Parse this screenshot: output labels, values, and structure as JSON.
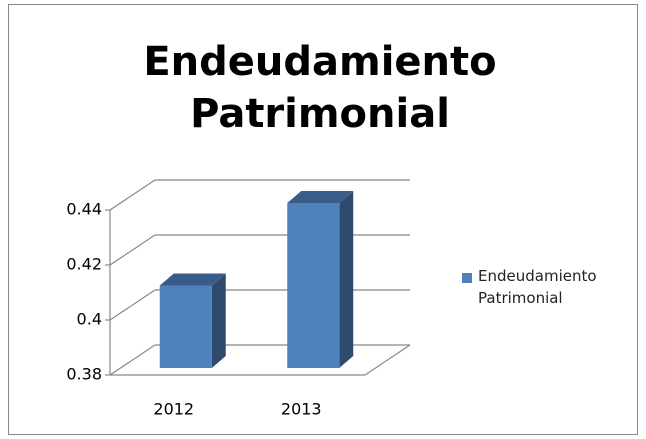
{
  "chart_data": {
    "type": "bar3d",
    "title": "Endeudamiento Patrimonial",
    "categories": [
      "2012",
      "2013"
    ],
    "series": [
      {
        "name": "Endeudamiento Patrimonial",
        "color": "#4f81bd",
        "values": [
          0.41,
          0.44
        ]
      }
    ],
    "ylim": [
      0.38,
      0.44
    ],
    "yticks": [
      0.38,
      0.4,
      0.42,
      0.44
    ],
    "grid": true,
    "legend": "right"
  }
}
